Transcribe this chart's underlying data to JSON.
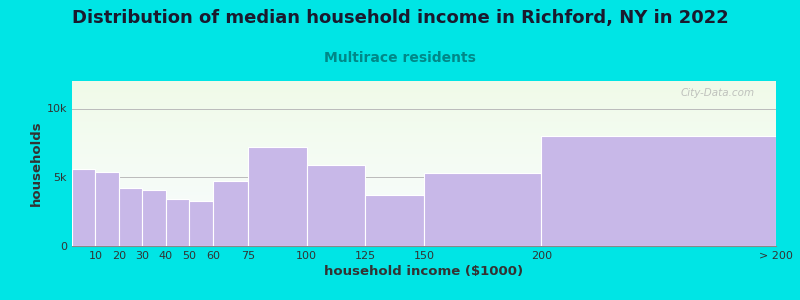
{
  "title": "Distribution of median household income in Richford, NY in 2022",
  "subtitle": "Multirace residents",
  "xlabel": "household income ($1000)",
  "ylabel": "households",
  "bin_edges": [
    0,
    10,
    20,
    30,
    40,
    50,
    60,
    75,
    100,
    125,
    150,
    200,
    300
  ],
  "tick_positions": [
    10,
    20,
    30,
    40,
    50,
    60,
    75,
    100,
    125,
    150,
    200,
    300
  ],
  "tick_labels": [
    "10",
    "20",
    "30",
    "40",
    "50",
    "60",
    "75",
    "100",
    "125",
    "150",
    "200",
    "> 200"
  ],
  "values": [
    5600,
    5400,
    4200,
    4100,
    3400,
    3300,
    4700,
    7200,
    5900,
    3700,
    5300,
    8000
  ],
  "bar_color": "#c8b8e8",
  "bar_edge_color": "#ffffff",
  "background_color": "#00e5e5",
  "title_color": "#1a1a2e",
  "subtitle_color": "#008888",
  "axis_label_color": "#333333",
  "tick_label_color": "#333333",
  "ytick_labels": [
    "0",
    "5k",
    "10k"
  ],
  "ytick_values": [
    0,
    5000,
    10000
  ],
  "ylim": [
    0,
    12000
  ],
  "xlim": [
    0,
    300
  ],
  "watermark": "City-Data.com",
  "title_fontsize": 13,
  "subtitle_fontsize": 10,
  "axis_label_fontsize": 9.5
}
